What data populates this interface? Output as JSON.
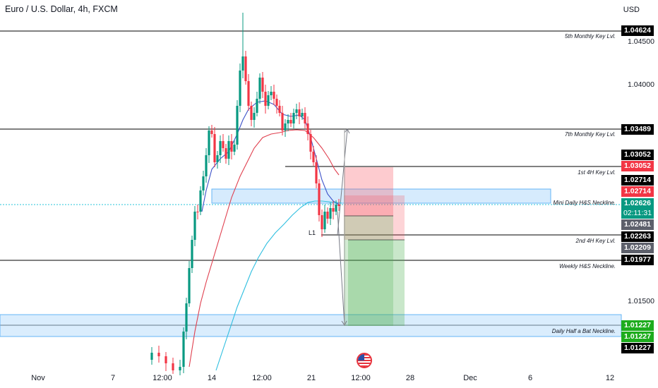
{
  "header": {
    "title": "Euro / U.S. Dollar, 4h, FXCM",
    "currency": "USD"
  },
  "price_axis_ticks": [
    "1.04500",
    "1.04000",
    "1.01500"
  ],
  "levels": [
    {
      "label": "5th Monthly Key Lvl.",
      "price": "1.04624"
    },
    {
      "label": "7th Monthly Key Lvl.",
      "price": "1.03489"
    },
    {
      "label": "1st 4H Key Lvl.",
      "price": "1.02714"
    },
    {
      "label": "Mini Daily H&S Neckline.",
      "price": "1.02626"
    },
    {
      "label": "2nd 4H Key Lvl.",
      "price": "1.02263"
    },
    {
      "label": "Weekly H&S Neckline.",
      "price": "1.01977"
    },
    {
      "label": "Daily Half a Bat Neckline.",
      "price": "1.01227"
    }
  ],
  "price_tags": {
    "t1": "1.04624",
    "t2": "1.03489",
    "t3": "1.03052",
    "t4": "1.03052",
    "t5": "1.02714",
    "t6": "1.02714",
    "t7": "1.02626",
    "countdown": "02:11:31",
    "t8": "1.02481",
    "t9": "1.02263",
    "t10": "1.02209",
    "t11": "1.01977",
    "t12": "1.01227",
    "t13": "1.01227",
    "t14": "1.01227"
  },
  "time_axis": [
    "Nov",
    "7",
    "12:00",
    "14",
    "12:00",
    "21",
    "12:00",
    "28",
    "Dec",
    "6",
    "12"
  ],
  "annotation_l1": "L1",
  "colors": {
    "up": "#089981",
    "down": "#f23645",
    "ema_fast": "#3d52c9",
    "ema_mid": "#e0404f",
    "ema_slow": "#2fbfe0",
    "zone": "#bbdefb"
  }
}
